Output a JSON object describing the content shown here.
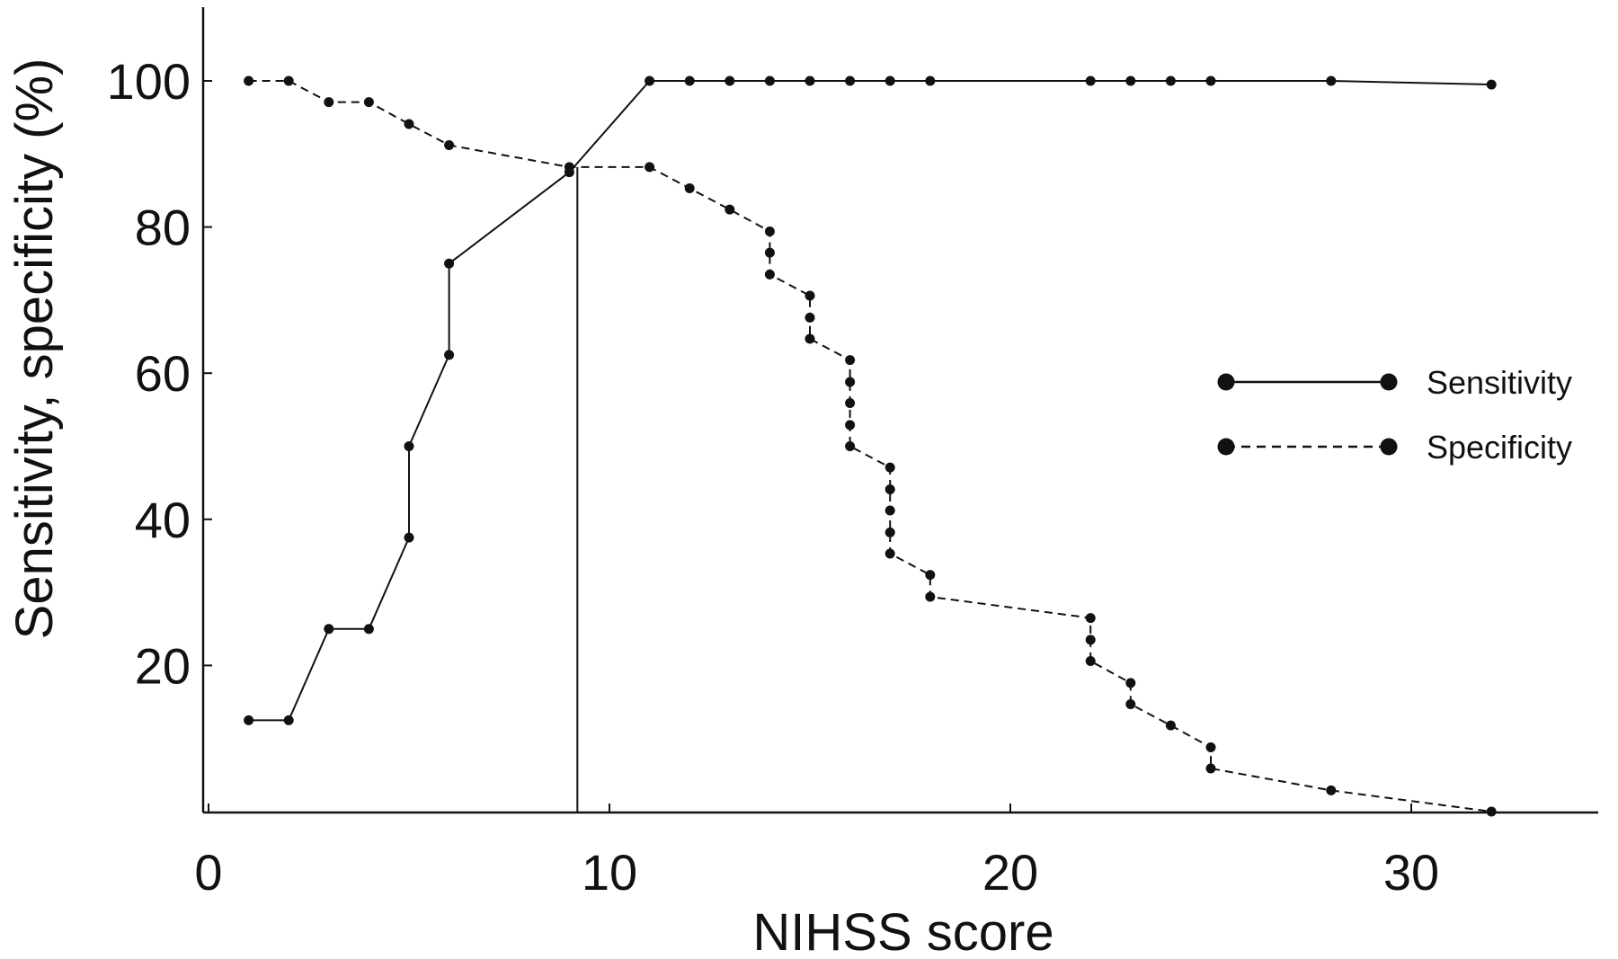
{
  "chart_data": {
    "type": "line",
    "title": "",
    "xlabel": "NIHSS score",
    "ylabel": "Sensitivity, specificity (%)",
    "xlim": [
      0,
      35
    ],
    "ylim": [
      0,
      110
    ],
    "xticks": [
      0,
      10,
      20,
      30
    ],
    "yticks": [
      20,
      40,
      60,
      80,
      100
    ],
    "grid": false,
    "legend_position": "right",
    "cutoff_line": {
      "x": 9.2,
      "y": 88.2
    },
    "series": [
      {
        "name": "Sensitivity",
        "line_style": "solid",
        "color": "#111111",
        "points": [
          [
            1,
            12.5
          ],
          [
            2,
            12.5
          ],
          [
            3,
            25
          ],
          [
            4,
            25
          ],
          [
            5,
            37.5
          ],
          [
            5,
            50
          ],
          [
            6,
            62.5
          ],
          [
            6,
            75
          ],
          [
            9,
            87.5
          ],
          [
            11,
            100
          ],
          [
            12,
            100
          ],
          [
            13,
            100
          ],
          [
            14,
            100
          ],
          [
            15,
            100
          ],
          [
            16,
            100
          ],
          [
            17,
            100
          ],
          [
            18,
            100
          ],
          [
            22,
            100
          ],
          [
            23,
            100
          ],
          [
            24,
            100
          ],
          [
            25,
            100
          ],
          [
            28,
            100
          ],
          [
            32,
            99.5
          ]
        ]
      },
      {
        "name": "Specificity",
        "line_style": "dashed",
        "color": "#111111",
        "points": [
          [
            1,
            100
          ],
          [
            2,
            100
          ],
          [
            3,
            97.1
          ],
          [
            4,
            97.1
          ],
          [
            5,
            94.1
          ],
          [
            6,
            91.2
          ],
          [
            9,
            88.2
          ],
          [
            11,
            88.2
          ],
          [
            12,
            85.3
          ],
          [
            13,
            82.4
          ],
          [
            14,
            79.4
          ],
          [
            14,
            76.5
          ],
          [
            14,
            73.5
          ],
          [
            15,
            70.6
          ],
          [
            15,
            67.6
          ],
          [
            15,
            64.7
          ],
          [
            16,
            61.8
          ],
          [
            16,
            58.8
          ],
          [
            16,
            55.9
          ],
          [
            16,
            52.9
          ],
          [
            16,
            50
          ],
          [
            17,
            47.1
          ],
          [
            17,
            44.1
          ],
          [
            17,
            41.2
          ],
          [
            17,
            38.2
          ],
          [
            17,
            35.3
          ],
          [
            18,
            32.4
          ],
          [
            18,
            29.4
          ],
          [
            22,
            26.5
          ],
          [
            22,
            23.5
          ],
          [
            22,
            20.6
          ],
          [
            23,
            17.6
          ],
          [
            23,
            14.7
          ],
          [
            24,
            11.8
          ],
          [
            25,
            8.8
          ],
          [
            25,
            5.9
          ],
          [
            28,
            2.9
          ],
          [
            32,
            0
          ]
        ]
      }
    ]
  }
}
